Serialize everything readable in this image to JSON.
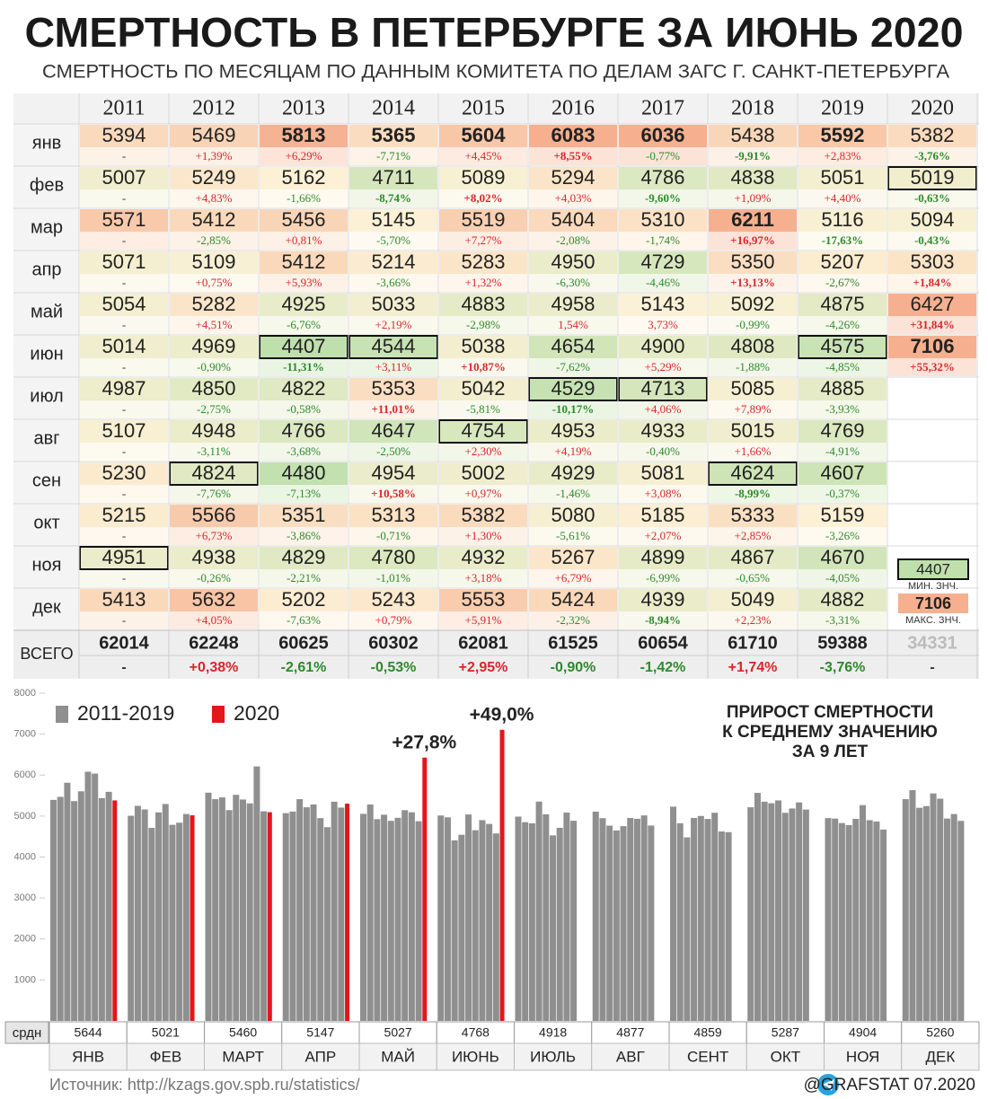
{
  "title": "СМЕРТНОСТЬ В ПЕТЕРБУРГЕ ЗА ИЮНЬ 2020",
  "subtitle": "СМЕРТНОСТЬ ПО МЕСЯЦАМ ПО ДАННЫМ КОМИТЕТА ПО ДЕЛАМ ЗАГС Г. САНКТ-ПЕТЕРБУРГА",
  "table": {
    "years": [
      2011,
      2012,
      2013,
      2014,
      2015,
      2016,
      2017,
      2018,
      2019,
      2020
    ],
    "months": [
      {
        "label": "янв",
        "values": [
          5394,
          5469,
          5813,
          5365,
          5604,
          6083,
          6036,
          5438,
          5592,
          5382
        ],
        "changes": [
          "-",
          "+1,39%",
          "+6,29%",
          "-7,71%",
          "+4,45%",
          "+8,55%",
          "-0,77%",
          "-9,91%",
          "+2,83%",
          "-3,76%"
        ]
      },
      {
        "label": "фев",
        "values": [
          5007,
          5249,
          5162,
          4711,
          5089,
          5294,
          4786,
          4838,
          5051,
          5019
        ],
        "changes": [
          "-",
          "+4,83%",
          "-1,66%",
          "-8,74%",
          "+8,02%",
          "+4,03%",
          "-9,60%",
          "+1,09%",
          "+4,40%",
          "-0,63%"
        ]
      },
      {
        "label": "мар",
        "values": [
          5571,
          5412,
          5456,
          5145,
          5519,
          5404,
          5310,
          6211,
          5116,
          5094
        ],
        "changes": [
          "-",
          "-2,85%",
          "+0,81%",
          "-5,70%",
          "+7,27%",
          "-2,08%",
          "-1,74%",
          "+16,97%",
          "-17,63%",
          "-0,43%"
        ]
      },
      {
        "label": "апр",
        "values": [
          5071,
          5109,
          5412,
          5214,
          5283,
          4950,
          4729,
          5350,
          5207,
          5303
        ],
        "changes": [
          "-",
          "+0,75%",
          "+5,93%",
          "-3,66%",
          "+1,32%",
          "-6,30%",
          "-4,46%",
          "+13,13%",
          "-2,67%",
          "+1,84%"
        ]
      },
      {
        "label": "май",
        "values": [
          5054,
          5282,
          4925,
          5033,
          4883,
          4958,
          5143,
          5092,
          4875,
          6427
        ],
        "changes": [
          "-",
          "+4,51%",
          "-6,76%",
          "+2,19%",
          "-2,98%",
          "1,54%",
          "3,73%",
          "-0,99%",
          "-4,26%",
          "+31,84%"
        ]
      },
      {
        "label": "июн",
        "values": [
          5014,
          4969,
          4407,
          4544,
          5038,
          4654,
          4900,
          4808,
          4575,
          7106
        ],
        "changes": [
          "-",
          "-0,90%",
          "-11,31%",
          "+3,11%",
          "+10,87%",
          "-7,62%",
          "+5,29%",
          "-1,88%",
          "-4,85%",
          "+55,32%"
        ]
      },
      {
        "label": "июл",
        "values": [
          4987,
          4850,
          4822,
          5353,
          5042,
          4529,
          4713,
          5085,
          4885
        ],
        "changes": [
          "-",
          "-2,75%",
          "-0,58%",
          "+11,01%",
          "-5,81%",
          "-10,17%",
          "+4,06%",
          "+7,89%",
          "-3,93%"
        ]
      },
      {
        "label": "авг",
        "values": [
          5107,
          4948,
          4766,
          4647,
          4754,
          4953,
          4933,
          5015,
          4769
        ],
        "changes": [
          "-",
          "-3,11%",
          "-3,68%",
          "-2,50%",
          "+2,30%",
          "+4,19%",
          "-0,40%",
          "+1,66%",
          "-4,91%"
        ]
      },
      {
        "label": "сен",
        "values": [
          5230,
          4824,
          4480,
          4954,
          5002,
          4929,
          5081,
          4624,
          4607
        ],
        "changes": [
          "-",
          "-7,76%",
          "-7,13%",
          "+10,58%",
          "+0,97%",
          "-1,46%",
          "+3,08%",
          "-8,99%",
          "-0,37%"
        ]
      },
      {
        "label": "окт",
        "values": [
          5215,
          5566,
          5351,
          5313,
          5382,
          5080,
          5185,
          5333,
          5159
        ],
        "changes": [
          "-",
          "+6,73%",
          "-3,86%",
          "-0,71%",
          "+1,30%",
          "-5,61%",
          "+2,07%",
          "+2,85%",
          "-3,26%"
        ]
      },
      {
        "label": "ноя",
        "values": [
          4951,
          4938,
          4829,
          4780,
          4932,
          5267,
          4899,
          4867,
          4670
        ],
        "changes": [
          "-",
          "-0,26%",
          "-2,21%",
          "-1,01%",
          "+3,18%",
          "+6,79%",
          "-6,99%",
          "-0,65%",
          "-4,05%"
        ]
      },
      {
        "label": "дек",
        "values": [
          5413,
          5632,
          5202,
          5243,
          5553,
          5424,
          4939,
          5049,
          4882
        ],
        "changes": [
          "-",
          "+4,05%",
          "-7,63%",
          "+0,79%",
          "+5,91%",
          "-2,32%",
          "-8,94%",
          "+2,23%",
          "-3,31%"
        ]
      }
    ],
    "total": {
      "label": "ВСЕГО",
      "values": [
        62014,
        62248,
        60625,
        60302,
        62081,
        61525,
        60654,
        61710,
        59388,
        34331
      ],
      "changes": [
        "-",
        "+0,38%",
        "-2,61%",
        "-0,53%",
        "+2,95%",
        "-0,90%",
        "-1,42%",
        "+1,74%",
        "-3,76%",
        "-"
      ]
    },
    "legend": {
      "min": {
        "value": 4407,
        "label": "МИН. ЗНЧ."
      },
      "max": {
        "value": 7106,
        "label": "МАКС. ЗНЧ."
      }
    }
  },
  "chart_data": {
    "type": "bar",
    "series": [
      {
        "name": "2011-2019",
        "color": "#8f8f8f"
      },
      {
        "name": "2020",
        "color": "#e3161c"
      }
    ],
    "categories": [
      "ЯНВ",
      "ФЕВ",
      "МАРТ",
      "АПР",
      "МАЙ",
      "ИЮНЬ",
      "ИЮЛЬ",
      "АВГ",
      "СЕНТ",
      "ОКТ",
      "НОЯ",
      "ДЕК"
    ],
    "averages_label": "срдн",
    "averages": [
      5644,
      5021,
      5460,
      5147,
      5027,
      4768,
      4918,
      4877,
      4859,
      5287,
      4904,
      5260
    ],
    "ylim": [
      0,
      8000
    ],
    "yticks": [
      1000,
      2000,
      3000,
      4000,
      5000,
      6000,
      7000,
      8000
    ],
    "annotations": [
      "+27,8%",
      "+49,0%"
    ],
    "note": [
      "ПРИРОСТ СМЕРТНОСТИ",
      "К СРЕДНЕМУ ЗНАЧЕНИЮ",
      "ЗА 9 ЛЕТ"
    ]
  },
  "source": "Источник: http://kzags.gov.spb.ru/statistics/",
  "credit": "@GRAFSTAT 07.2020"
}
